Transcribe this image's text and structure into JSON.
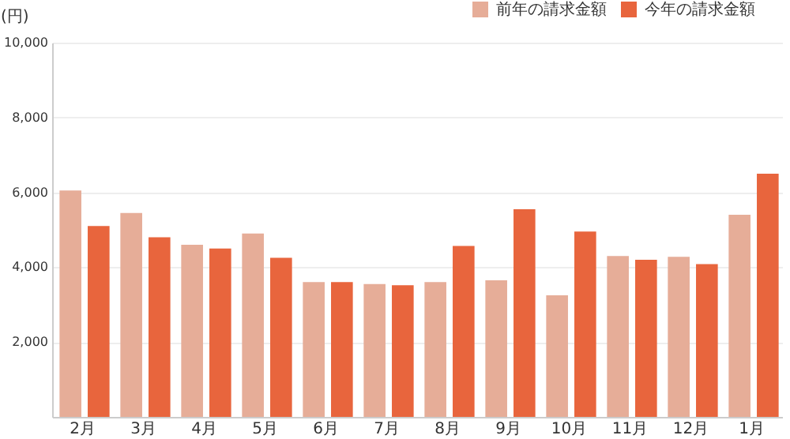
{
  "chart_data": {
    "type": "bar",
    "ylabel": "(円)",
    "categories": [
      "2月",
      "3月",
      "4月",
      "5月",
      "6月",
      "7月",
      "8月",
      "9月",
      "10月",
      "11月",
      "12月",
      "1月"
    ],
    "series": [
      {
        "name": "前年の請求金額",
        "color": "#e6ad98",
        "values": [
          6050,
          5450,
          4600,
          4900,
          3600,
          3550,
          3600,
          3650,
          3250,
          4300,
          4280,
          5400
        ]
      },
      {
        "name": "今年の請求金額",
        "color": "#e8653d",
        "values": [
          5100,
          4800,
          4500,
          4250,
          3600,
          3520,
          4570,
          5550,
          4950,
          4200,
          4080,
          6500
        ]
      }
    ],
    "ylim": [
      0,
      10000
    ],
    "yticks": [
      {
        "value": 0,
        "label": null
      },
      {
        "value": 2000,
        "label": "2,000"
      },
      {
        "value": 4000,
        "label": "4,000"
      },
      {
        "value": 6000,
        "label": "6,000"
      },
      {
        "value": 8000,
        "label": "8,000"
      },
      {
        "value": 10000,
        "label": "10,000"
      }
    ],
    "grid": "y",
    "legend": "top right"
  }
}
